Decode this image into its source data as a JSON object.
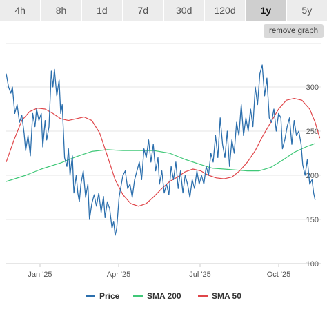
{
  "range_tabs": [
    "4h",
    "8h",
    "1d",
    "7d",
    "30d",
    "120d",
    "1y",
    "5y"
  ],
  "active_range": "1y",
  "remove_graph_label": "remove graph",
  "chart_data": {
    "type": "line",
    "y_ticks": [
      "300",
      "250",
      "200",
      "150",
      "100"
    ],
    "x_ticks": [
      "Jan '25",
      "Apr '25",
      "Jul '25",
      "Oct '25"
    ],
    "grid": "horizontal",
    "legend_position": "bottom",
    "series": [
      {
        "name": "Price",
        "color": "#2c6fad",
        "values": [
          [
            0,
            315
          ],
          [
            3,
            300
          ],
          [
            6,
            293
          ],
          [
            8,
            300
          ],
          [
            11,
            270
          ],
          [
            14,
            280
          ],
          [
            17,
            260
          ],
          [
            20,
            268
          ],
          [
            23,
            248
          ],
          [
            25,
            228
          ],
          [
            28,
            245
          ],
          [
            31,
            222
          ],
          [
            34,
            270
          ],
          [
            37,
            255
          ],
          [
            39,
            275
          ],
          [
            42,
            262
          ],
          [
            45,
            270
          ],
          [
            47,
            232
          ],
          [
            50,
            262
          ],
          [
            52,
            240
          ],
          [
            55,
            255
          ],
          [
            58,
            318
          ],
          [
            60,
            300
          ],
          [
            62,
            320
          ],
          [
            65,
            290
          ],
          [
            68,
            308
          ],
          [
            70,
            270
          ],
          [
            72,
            280
          ],
          [
            75,
            220
          ],
          [
            78,
            210
          ],
          [
            80,
            230
          ],
          [
            82,
            200
          ],
          [
            85,
            222
          ],
          [
            87,
            180
          ],
          [
            90,
            200
          ],
          [
            92,
            180
          ],
          [
            94,
            170
          ],
          [
            96,
            190
          ],
          [
            99,
            205
          ],
          [
            102,
            175
          ],
          [
            105,
            190
          ],
          [
            107,
            150
          ],
          [
            110,
            168
          ],
          [
            113,
            178
          ],
          [
            116,
            165
          ],
          [
            119,
            180
          ],
          [
            122,
            158
          ],
          [
            125,
            176
          ],
          [
            127,
            152
          ],
          [
            130,
            170
          ],
          [
            133,
            162
          ],
          [
            136,
            140
          ],
          [
            138,
            148
          ],
          [
            140,
            132
          ],
          [
            142,
            140
          ],
          [
            145,
            175
          ],
          [
            148,
            190
          ],
          [
            150,
            200
          ],
          [
            153,
            205
          ],
          [
            156,
            185
          ],
          [
            159,
            190
          ],
          [
            162,
            175
          ],
          [
            165,
            195
          ],
          [
            168,
            205
          ],
          [
            171,
            215
          ],
          [
            174,
            195
          ],
          [
            177,
            230
          ],
          [
            180,
            220
          ],
          [
            183,
            240
          ],
          [
            186,
            215
          ],
          [
            189,
            235
          ],
          [
            192,
            205
          ],
          [
            195,
            220
          ],
          [
            197,
            190
          ],
          [
            200,
            205
          ],
          [
            203,
            180
          ],
          [
            206,
            190
          ],
          [
            209,
            178
          ],
          [
            212,
            210
          ],
          [
            215,
            195
          ],
          [
            218,
            215
          ],
          [
            221,
            185
          ],
          [
            224,
            205
          ],
          [
            227,
            180
          ],
          [
            230,
            200
          ],
          [
            233,
            190
          ],
          [
            236,
            175
          ],
          [
            239,
            195
          ],
          [
            242,
            185
          ],
          [
            245,
            205
          ],
          [
            248,
            190
          ],
          [
            251,
            200
          ],
          [
            254,
            190
          ],
          [
            257,
            210
          ],
          [
            260,
            200
          ],
          [
            263,
            225
          ],
          [
            266,
            215
          ],
          [
            269,
            245
          ],
          [
            272,
            220
          ],
          [
            275,
            265
          ],
          [
            278,
            235
          ],
          [
            281,
            220
          ],
          [
            284,
            250
          ],
          [
            287,
            210
          ],
          [
            290,
            240
          ],
          [
            293,
            225
          ],
          [
            296,
            260
          ],
          [
            299,
            245
          ],
          [
            302,
            280
          ],
          [
            305,
            245
          ],
          [
            308,
            265
          ],
          [
            311,
            250
          ],
          [
            314,
            275
          ],
          [
            317,
            255
          ],
          [
            320,
            300
          ],
          [
            323,
            280
          ],
          [
            326,
            315
          ],
          [
            329,
            325
          ],
          [
            332,
            290
          ],
          [
            335,
            310
          ],
          [
            338,
            265
          ],
          [
            341,
            260
          ],
          [
            344,
            275
          ],
          [
            347,
            250
          ],
          [
            350,
            270
          ],
          [
            353,
            265
          ],
          [
            355,
            230
          ],
          [
            358,
            240
          ],
          [
            361,
            255
          ],
          [
            364,
            265
          ],
          [
            367,
            235
          ],
          [
            370,
            262
          ],
          [
            373,
            245
          ],
          [
            376,
            250
          ],
          [
            379,
            235
          ],
          [
            381,
            212
          ],
          [
            384,
            200
          ],
          [
            387,
            218
          ],
          [
            390,
            190
          ],
          [
            393,
            195
          ],
          [
            395,
            180
          ],
          [
            397,
            172
          ]
        ]
      },
      {
        "name": "SMA 200",
        "color": "#40c878",
        "values": [
          [
            0,
            193
          ],
          [
            25,
            200
          ],
          [
            45,
            207
          ],
          [
            70,
            214
          ],
          [
            90,
            221
          ],
          [
            110,
            227
          ],
          [
            130,
            229
          ],
          [
            150,
            228
          ],
          [
            170,
            228
          ],
          [
            190,
            228
          ],
          [
            210,
            225
          ],
          [
            230,
            218
          ],
          [
            250,
            212
          ],
          [
            265,
            208
          ],
          [
            280,
            207
          ],
          [
            295,
            206
          ],
          [
            310,
            205
          ],
          [
            325,
            205
          ],
          [
            340,
            209
          ],
          [
            355,
            217
          ],
          [
            370,
            226
          ],
          [
            385,
            232
          ],
          [
            397,
            236
          ]
        ]
      },
      {
        "name": "SMA 50",
        "color": "#e0464a",
        "values": [
          [
            0,
            215
          ],
          [
            10,
            240
          ],
          [
            20,
            262
          ],
          [
            30,
            272
          ],
          [
            40,
            276
          ],
          [
            50,
            275
          ],
          [
            60,
            270
          ],
          [
            70,
            264
          ],
          [
            80,
            262
          ],
          [
            90,
            264
          ],
          [
            100,
            266
          ],
          [
            110,
            262
          ],
          [
            120,
            248
          ],
          [
            130,
            222
          ],
          [
            140,
            195
          ],
          [
            150,
            178
          ],
          [
            160,
            168
          ],
          [
            170,
            165
          ],
          [
            180,
            168
          ],
          [
            190,
            176
          ],
          [
            200,
            185
          ],
          [
            210,
            193
          ],
          [
            220,
            198
          ],
          [
            230,
            204
          ],
          [
            240,
            207
          ],
          [
            250,
            205
          ],
          [
            260,
            200
          ],
          [
            270,
            197
          ],
          [
            280,
            196
          ],
          [
            290,
            198
          ],
          [
            300,
            205
          ],
          [
            310,
            215
          ],
          [
            320,
            228
          ],
          [
            330,
            245
          ],
          [
            340,
            260
          ],
          [
            350,
            275
          ],
          [
            360,
            285
          ],
          [
            370,
            287
          ],
          [
            380,
            285
          ],
          [
            390,
            275
          ],
          [
            397,
            260
          ],
          [
            403,
            242
          ]
        ]
      }
    ]
  }
}
